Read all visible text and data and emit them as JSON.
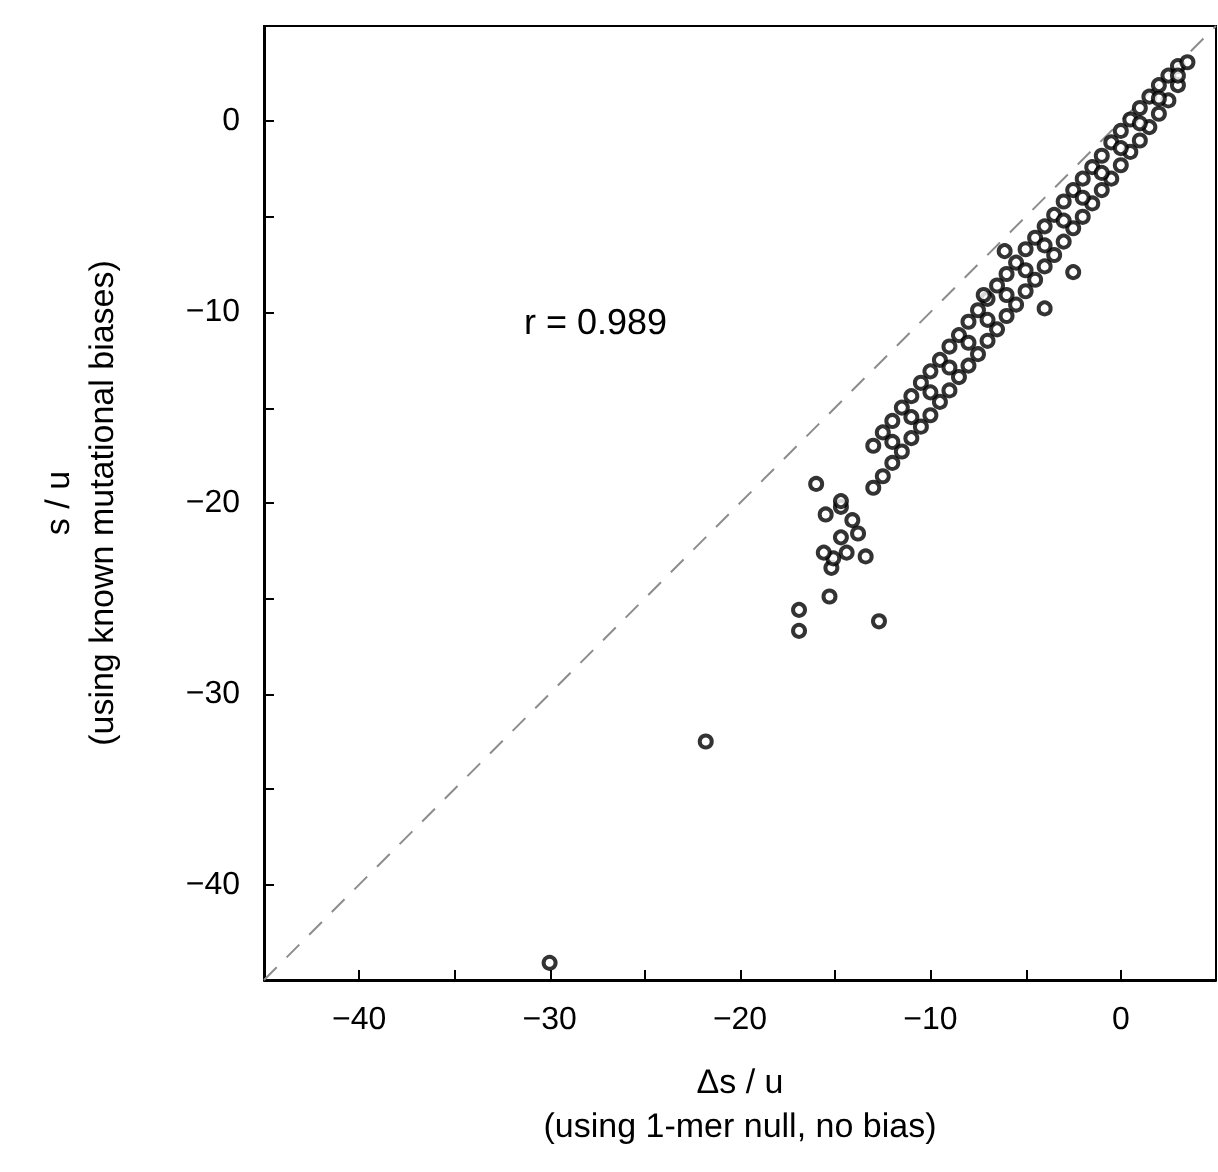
{
  "chart_data": {
    "type": "scatter",
    "xlabel": "Δs / u\n(using 1-mer null, no bias)",
    "ylabel": "s / u\n(using known mutational biases)",
    "annotations": [
      "r = 0.989"
    ],
    "marker": "circle",
    "xlim": [
      -45,
      5
    ],
    "ylim": [
      -45,
      5
    ],
    "xticks": [
      {
        "value": -40,
        "label": "−40"
      },
      {
        "value": -35,
        "label": null
      },
      {
        "value": -30,
        "label": "−30"
      },
      {
        "value": -25,
        "label": null
      },
      {
        "value": -20,
        "label": "−20"
      },
      {
        "value": -15,
        "label": null
      },
      {
        "value": -10,
        "label": "−10"
      },
      {
        "value": -5,
        "label": null
      },
      {
        "value": 0,
        "label": "0"
      }
    ],
    "yticks": [
      {
        "value": -40,
        "label": "−40"
      },
      {
        "value": -35,
        "label": null
      },
      {
        "value": -30,
        "label": "−30"
      },
      {
        "value": -25,
        "label": null
      },
      {
        "value": -20,
        "label": "−20"
      },
      {
        "value": -15,
        "label": null
      },
      {
        "value": -10,
        "label": "−10"
      },
      {
        "value": -5,
        "label": null
      },
      {
        "value": 0,
        "label": "0"
      }
    ],
    "series": [
      {
        "type": "line",
        "color": "#8c8c8c",
        "line_style": "dashed",
        "marker": "none",
        "x": [
          -45,
          5
        ],
        "values": [
          -45,
          5
        ]
      },
      {
        "color": "#000000",
        "x": [
          -30.0,
          -21.8,
          -16.9,
          -16.9,
          -12.7,
          -15.3,
          -15.2,
          -15.1,
          -15.6,
          -14.4,
          -13.4,
          -14.7,
          -13.8,
          -14.1,
          -15.5,
          -14.7,
          -14.7,
          -16.0,
          -13,
          -13,
          -12.5,
          -12.5,
          -12,
          -12,
          -11.5,
          -11.5,
          -11,
          -11,
          -10.5,
          -10.5,
          -10,
          -10,
          -9.5,
          -9.5,
          -9,
          -9,
          -8.5,
          -8.5,
          -8,
          -8,
          -7.5,
          -7.5,
          -7,
          -7,
          -6.5,
          -6.5,
          -6,
          -6,
          -5.5,
          -5.5,
          -5,
          -5,
          -4.5,
          -4.5,
          -4,
          -4,
          -3.5,
          -3.5,
          -3,
          -3,
          -2.5,
          -2.5,
          -2,
          -2,
          -1.5,
          -1.5,
          -1,
          -1,
          -0.5,
          -0.5,
          0,
          0,
          0.5,
          0.5,
          1,
          1,
          1.5,
          1.5,
          2,
          2,
          2.5,
          2.5,
          3,
          3,
          3.5,
          -12,
          -11,
          -10,
          -9,
          -8,
          -7,
          -6,
          -5,
          -4,
          -3,
          -2,
          -1,
          0,
          1,
          2,
          3,
          -2.5,
          -4.0,
          -6.1,
          -7.2
        ],
        "values": [
          -44.1,
          -32.5,
          -25.6,
          -26.7,
          -26.2,
          -24.9,
          -23.4,
          -22.9,
          -22.6,
          -22.6,
          -22.8,
          -21.8,
          -21.6,
          -20.9,
          -20.6,
          -20.2,
          -19.9,
          -19.0,
          -17.0,
          -19.2,
          -16.3,
          -18.6,
          -15.7,
          -17.9,
          -15.0,
          -17.3,
          -14.4,
          -16.6,
          -13.7,
          -16.0,
          -13.1,
          -15.4,
          -12.5,
          -14.7,
          -11.8,
          -14.1,
          -11.2,
          -13.4,
          -10.5,
          -12.8,
          -9.9,
          -12.2,
          -9.3,
          -11.5,
          -8.6,
          -10.9,
          -8.0,
          -10.2,
          -7.4,
          -9.6,
          -6.7,
          -8.9,
          -6.1,
          -8.3,
          -5.5,
          -7.6,
          -4.9,
          -7.0,
          -4.2,
          -6.3,
          -3.6,
          -5.6,
          -3.0,
          -5.0,
          -2.4,
          -4.3,
          -1.8,
          -3.6,
          -1.1,
          -3.0,
          -0.5,
          -2.3,
          0.1,
          -1.6,
          0.7,
          -1.0,
          1.3,
          -0.3,
          1.9,
          0.4,
          2.4,
          1.1,
          2.9,
          1.9,
          3.1,
          -16.8,
          -15.5,
          -14.2,
          -12.9,
          -11.6,
          -10.4,
          -9.1,
          -7.8,
          -6.5,
          -5.2,
          -4.0,
          -2.7,
          -1.4,
          -0.1,
          1.2,
          2.4,
          -7.9,
          -9.8,
          -6.8,
          -9.1
        ]
      }
    ]
  }
}
